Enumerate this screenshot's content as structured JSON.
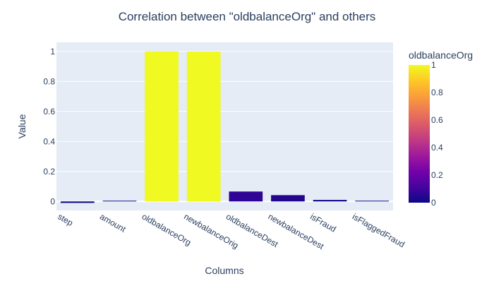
{
  "chart_data": {
    "type": "bar",
    "title": "Correlation between \"oldbalanceOrg\" and others",
    "xlabel": "Columns",
    "ylabel": "Value",
    "categories": [
      "step",
      "amount",
      "oldbalanceOrg",
      "newbalanceOrig",
      "oldbalanceDest",
      "newbalanceDest",
      "isFraud",
      "isFlaggedFraud"
    ],
    "values": [
      -0.01,
      0.004,
      1.0,
      0.999,
      0.066,
      0.042,
      0.01,
      0.003
    ],
    "ylim": [
      -0.06,
      1.06
    ],
    "yticks": [
      "0",
      "0.2",
      "0.4",
      "0.6",
      "0.8",
      "1"
    ],
    "grid": true,
    "colorbar": {
      "title": "oldbalanceOrg",
      "ticks": [
        "0",
        "0.2",
        "0.4",
        "0.6",
        "0.8",
        "1"
      ],
      "range": [
        0,
        1
      ],
      "colorscale": [
        "#0d0887",
        "#46039f",
        "#7201a8",
        "#9c179e",
        "#bd3786",
        "#d8576b",
        "#ed7953",
        "#fb9f3a",
        "#fdca26",
        "#f0f921"
      ]
    },
    "colors": {
      "plot_bg": "#e5ecf6",
      "grid": "#ffffff",
      "text": "#2a3f5f"
    }
  }
}
